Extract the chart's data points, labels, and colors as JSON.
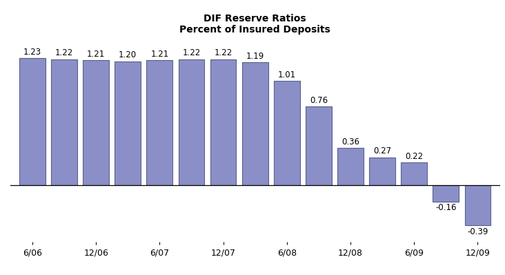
{
  "title_line1": "DIF Reserve Ratios",
  "title_line2": "Percent of Insured Deposits",
  "values": [
    1.23,
    1.22,
    1.21,
    1.2,
    1.21,
    1.22,
    1.22,
    1.19,
    1.01,
    0.76,
    0.36,
    0.27,
    0.22,
    -0.16,
    -0.39
  ],
  "tick_labels": [
    "6/06",
    "12/06",
    "6/07",
    "12/07",
    "6/08",
    "12/08",
    "6/09",
    "12/09"
  ],
  "bar_color": "#8b8fc8",
  "bar_edge_color": "#5a5e8a",
  "background_color": "#ffffff",
  "title_fontsize": 10,
  "label_fontsize": 8.5,
  "tick_fontsize": 9,
  "ylim_min": -0.55,
  "ylim_max": 1.42,
  "bar_width": 0.82
}
